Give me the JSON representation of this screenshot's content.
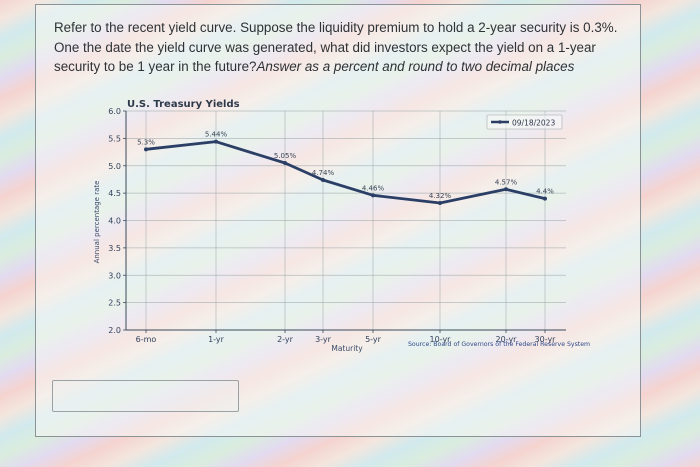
{
  "question": {
    "text_main": "Refer to the recent yield curve. Suppose the liquidity premium to hold a 2-year security is 0.3%. One the date the yield curve was generated, what did investors expect the yield on a 1-year security to be 1 year in the future?",
    "text_instruction": "Answer as a percent and round to two decimal places"
  },
  "answer": {
    "value": "",
    "placeholder": ""
  },
  "chart_data": {
    "type": "line",
    "title": "U.S. Treasury Yields",
    "xlabel": "Maturity",
    "ylabel": "Annual percentage rate",
    "categories": [
      "6-mo",
      "1-yr",
      "2-yr",
      "3-yr",
      "5-yr",
      "10-yr",
      "20-yr",
      "30-yr"
    ],
    "series": [
      {
        "name": "09/18/2023",
        "values": [
          5.3,
          5.44,
          5.05,
          4.74,
          4.46,
          4.32,
          4.57,
          4.4
        ],
        "labels": [
          "5.3%",
          "5.44%",
          "5.05%",
          "4.74%",
          "4.46%",
          "4.32%",
          "4.57%",
          "4.4%"
        ],
        "color": "#2b3f66"
      }
    ],
    "ylim": [
      2.0,
      6.0
    ],
    "yticks": [
      "2.0",
      "2.5",
      "3.0",
      "3.5",
      "4.0",
      "4.5",
      "5.0",
      "5.5",
      "6.0"
    ],
    "grid": true,
    "legend_position": "upper right",
    "source": "Source: Board of Governors of the Federal Reserve System"
  }
}
